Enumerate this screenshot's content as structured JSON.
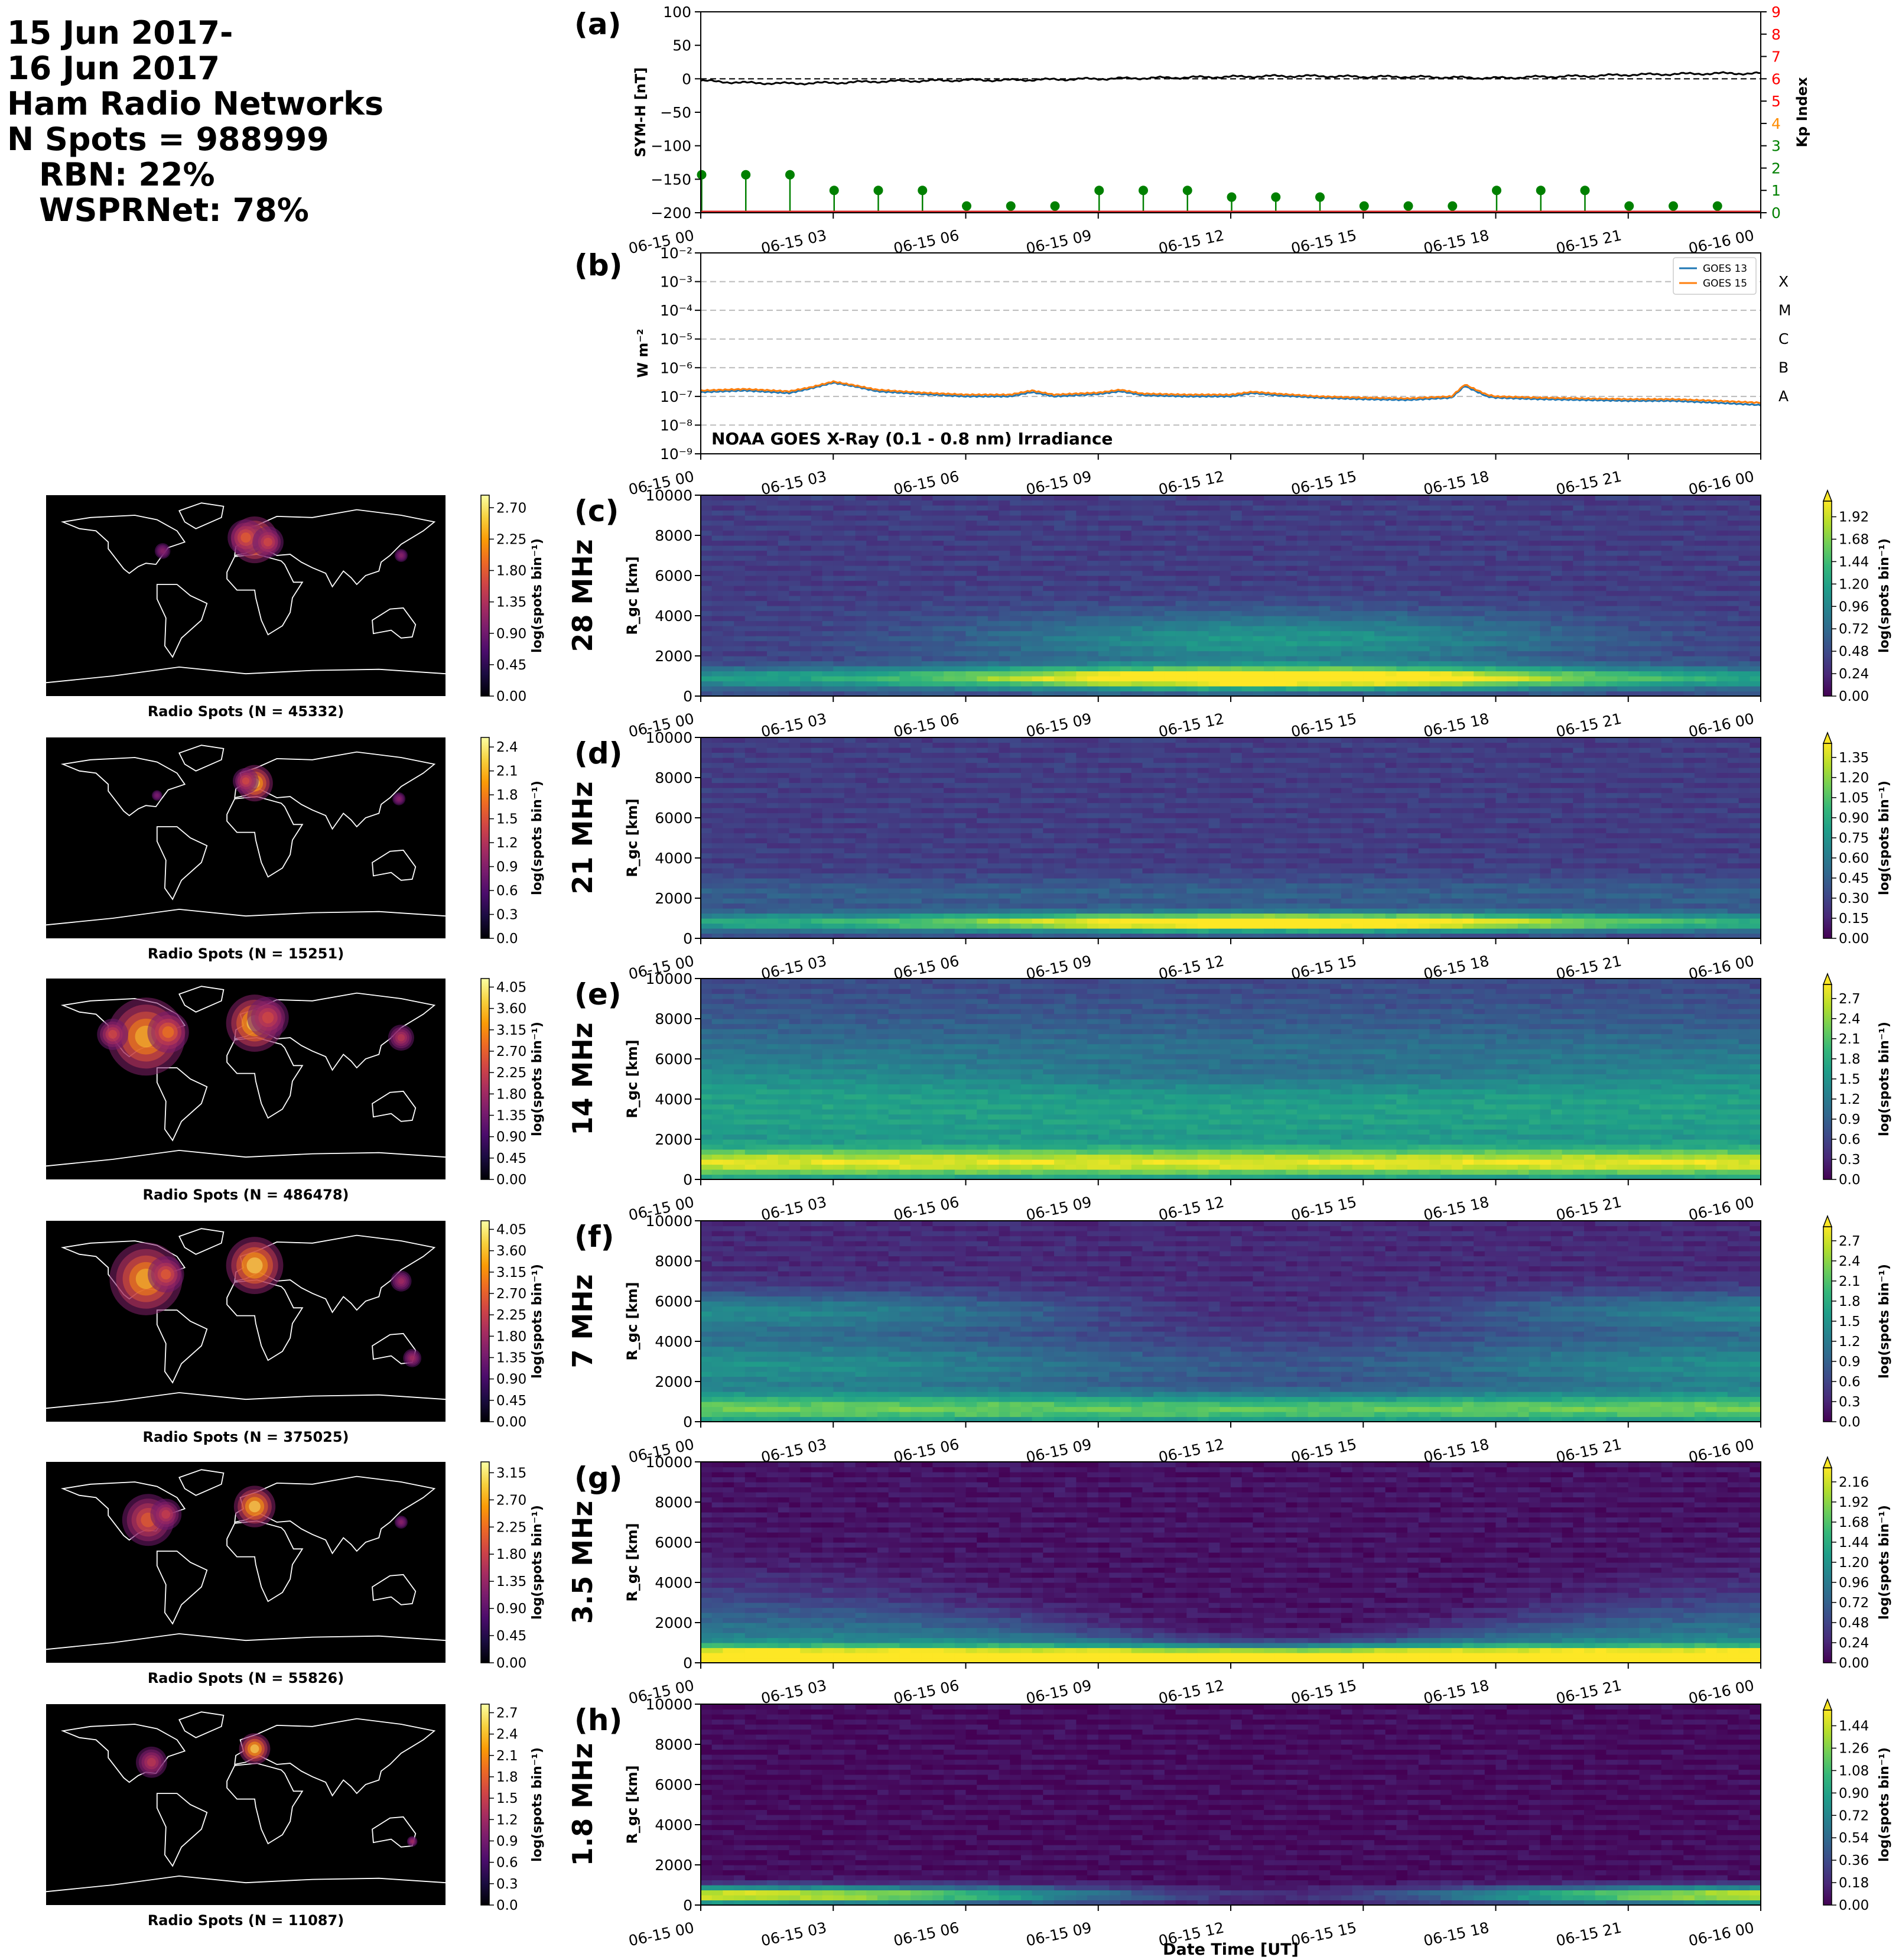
{
  "header": {
    "lines": [
      "15 Jun 2017-",
      "16 Jun 2017",
      "Ham Radio Networks",
      "N Spots = 988999"
    ],
    "sub_lines": [
      "RBN: 22%",
      "WSPRNet: 78%"
    ]
  },
  "colors": {
    "viridis": [
      "#440154",
      "#482878",
      "#3e4989",
      "#31688e",
      "#26828e",
      "#1f9e89",
      "#35b779",
      "#6ece58",
      "#b5de2b",
      "#fde725"
    ],
    "inferno": [
      "#000004",
      "#1b0c41",
      "#4a0c6b",
      "#781c6d",
      "#a52c60",
      "#cf4446",
      "#ed6925",
      "#fb9b06",
      "#f7d13d",
      "#fcffa4"
    ],
    "symh_line": "#000000",
    "kp_stem": "#008000",
    "kp_axis_colors": [
      "#008000",
      "#008000",
      "#008000",
      "#008000",
      "#ff8c00",
      "#ff0000",
      "#ff0000",
      "#ff0000",
      "#ff0000",
      "#ff0000"
    ],
    "goes13": "#1f77b4",
    "goes15": "#ff7f0e",
    "coastline": "#ffffff",
    "map_bg": "#000000"
  },
  "time_axis": {
    "ticks": [
      "06-15 00",
      "06-15 03",
      "06-15 06",
      "06-15 09",
      "06-15 12",
      "06-15 15",
      "06-15 18",
      "06-15 21",
      "06-16 00"
    ],
    "xlabel": "Date Time [UT]"
  },
  "chart_data": [
    {
      "id": "symh_kp",
      "type": "line",
      "panel_label": "(a)",
      "ylabel": "SYM-H [nT]",
      "ylim": [
        -200,
        100
      ],
      "yticks": [
        "−200",
        "−150",
        "−100",
        "−50",
        "0",
        "50",
        "100"
      ],
      "y2label": "Kp Index",
      "y2lim": [
        0,
        9
      ],
      "y2ticks": [
        "0",
        "1",
        "2",
        "3",
        "4",
        "5",
        "6",
        "7",
        "8",
        "9"
      ],
      "symh": {
        "x": [
          0,
          1,
          2,
          3,
          4,
          5,
          6,
          7,
          8,
          9,
          10,
          11,
          12,
          13,
          14,
          15,
          16,
          17,
          18,
          19,
          20,
          21,
          22,
          23,
          24
        ],
        "y": [
          -3,
          -6,
          -7,
          -6,
          -4,
          -3,
          -2,
          -2,
          -1,
          0,
          1,
          2,
          3,
          4,
          4,
          3,
          3,
          2,
          1,
          3,
          4,
          6,
          7,
          8,
          8
        ]
      },
      "kp": {
        "x": [
          0,
          1,
          2,
          3,
          4,
          5,
          6,
          7,
          8,
          9,
          10,
          11,
          12,
          13,
          14,
          15,
          16,
          17,
          18,
          19,
          20,
          21,
          22,
          23
        ],
        "y": [
          1.7,
          1.7,
          1.7,
          1.0,
          1.0,
          1.0,
          0.3,
          0.3,
          0.3,
          1.0,
          1.0,
          1.0,
          0.7,
          0.7,
          0.7,
          0.3,
          0.3,
          0.3,
          1.0,
          1.0,
          1.0,
          0.3,
          0.3,
          0.3
        ]
      }
    },
    {
      "id": "goes",
      "type": "line",
      "panel_label": "(b)",
      "ylabel": "W m⁻²",
      "yscale": "log",
      "ylim_exp": [
        -9,
        -2
      ],
      "yticks": [
        "10⁻⁹",
        "10⁻⁸",
        "10⁻⁷",
        "10⁻⁶",
        "10⁻⁵",
        "10⁻⁴",
        "10⁻³",
        "10⁻²"
      ],
      "flare_classes": [
        "A",
        "B",
        "C",
        "M",
        "X"
      ],
      "annotation": "NOAA GOES X-Ray (0.1 - 0.8 nm) Irradiance",
      "series": [
        {
          "name": "GOES 13",
          "x": [
            0,
            1,
            2,
            2.5,
            3,
            3.5,
            4,
            5,
            6,
            7,
            7.5,
            8,
            9,
            9.5,
            10,
            11,
            12,
            12.5,
            13,
            14,
            15,
            16,
            17,
            17.3,
            17.8,
            18,
            19,
            20,
            21,
            22,
            23,
            24
          ],
          "y": [
            1.4e-07,
            1.6e-07,
            1.3e-07,
            1.9e-07,
            3e-07,
            2.2e-07,
            1.5e-07,
            1.2e-07,
            1e-07,
            1e-07,
            1.4e-07,
            1e-07,
            1.2e-07,
            1.5e-07,
            1.1e-07,
            1e-07,
            1e-07,
            1.3e-07,
            1.1e-07,
            9e-08,
            8e-08,
            7.5e-08,
            9e-08,
            2.3e-07,
            1e-07,
            9e-08,
            8e-08,
            7.5e-08,
            7e-08,
            7e-08,
            6e-08,
            5e-08
          ]
        },
        {
          "name": "GOES 15",
          "x": [
            0,
            1,
            2,
            2.5,
            3,
            3.5,
            4,
            5,
            6,
            7,
            7.5,
            8,
            9,
            9.5,
            10,
            11,
            12,
            12.5,
            13,
            14,
            15,
            16,
            17,
            17.3,
            17.8,
            18,
            19,
            20,
            21,
            22,
            23,
            24
          ],
          "y": [
            1.6e-07,
            1.8e-07,
            1.5e-07,
            2.1e-07,
            3.3e-07,
            2.4e-07,
            1.7e-07,
            1.35e-07,
            1.15e-07,
            1.15e-07,
            1.6e-07,
            1.15e-07,
            1.35e-07,
            1.7e-07,
            1.25e-07,
            1.15e-07,
            1.15e-07,
            1.45e-07,
            1.25e-07,
            1e-07,
            9e-08,
            8.5e-08,
            1e-07,
            2.6e-07,
            1.15e-07,
            1e-07,
            9e-08,
            8.5e-08,
            8e-08,
            8e-08,
            7e-08,
            6e-08
          ]
        }
      ]
    },
    {
      "id": "band_28",
      "type": "heatmap",
      "panel_label": "(c)",
      "band_label": "28 MHz",
      "ylabel": "R_gc [km]",
      "ylim": [
        0,
        10000
      ],
      "yticks": [
        "0",
        "2000",
        "4000",
        "6000",
        "8000",
        "10000"
      ],
      "cbar_label": "log(spots bin⁻¹)",
      "cbar_ticks": [
        "0.00",
        "0.24",
        "0.48",
        "0.72",
        "0.96",
        "1.20",
        "1.44",
        "1.68",
        "1.92"
      ],
      "map_title": "Radio Spots (N = 45332)",
      "map_cbar_ticks": [
        "0.00",
        "0.45",
        "0.90",
        "1.35",
        "1.80",
        "2.25",
        "2.70"
      ],
      "profile": "day",
      "main_r": 1000,
      "extent": 2500
    },
    {
      "id": "band_21",
      "type": "heatmap",
      "panel_label": "(d)",
      "band_label": "21 MHz",
      "ylabel": "R_gc [km]",
      "ylim": [
        0,
        10000
      ],
      "yticks": [
        "0",
        "2000",
        "4000",
        "6000",
        "8000",
        "10000"
      ],
      "cbar_label": "log(spots bin⁻¹)",
      "cbar_ticks": [
        "0.00",
        "0.15",
        "0.30",
        "0.45",
        "0.60",
        "0.75",
        "0.90",
        "1.05",
        "1.20",
        "1.35"
      ],
      "map_title": "Radio Spots (N = 15251)",
      "map_cbar_ticks": [
        "0.0",
        "0.3",
        "0.6",
        "0.9",
        "1.2",
        "1.5",
        "1.8",
        "2.1",
        "2.4"
      ],
      "profile": "day_narrow",
      "main_r": 900,
      "extent": 1800
    },
    {
      "id": "band_14",
      "type": "heatmap",
      "panel_label": "(e)",
      "band_label": "14 MHz",
      "ylabel": "R_gc [km]",
      "ylim": [
        0,
        10000
      ],
      "yticks": [
        "0",
        "2000",
        "4000",
        "6000",
        "8000",
        "10000"
      ],
      "cbar_label": "log(spots bin⁻¹)",
      "cbar_ticks": [
        "0.0",
        "0.3",
        "0.6",
        "0.9",
        "1.2",
        "1.5",
        "1.8",
        "2.1",
        "2.4",
        "2.7"
      ],
      "map_title": "Radio Spots (N = 486478)",
      "map_cbar_ticks": [
        "0.00",
        "0.45",
        "0.90",
        "1.35",
        "1.80",
        "2.25",
        "2.70",
        "3.15",
        "3.60",
        "4.05"
      ],
      "profile": "broad",
      "main_r": 800,
      "extent": 10000
    },
    {
      "id": "band_7",
      "type": "heatmap",
      "panel_label": "(f)",
      "band_label": "7 MHz",
      "ylabel": "R_gc [km]",
      "ylim": [
        0,
        10000
      ],
      "yticks": [
        "0",
        "2000",
        "4000",
        "6000",
        "8000",
        "10000"
      ],
      "cbar_label": "log(spots bin⁻¹)",
      "cbar_ticks": [
        "0.0",
        "0.3",
        "0.6",
        "0.9",
        "1.2",
        "1.5",
        "1.8",
        "2.1",
        "2.4",
        "2.7"
      ],
      "map_title": "Radio Spots (N = 375025)",
      "map_cbar_ticks": [
        "0.00",
        "0.45",
        "0.90",
        "1.35",
        "1.80",
        "2.25",
        "2.70",
        "3.15",
        "3.60",
        "4.05"
      ],
      "profile": "night",
      "main_r": 700,
      "extent": 7000
    },
    {
      "id": "band_3_5",
      "type": "heatmap",
      "panel_label": "(g)",
      "band_label": "3.5 MHz",
      "ylabel": "R_gc [km]",
      "ylim": [
        0,
        10000
      ],
      "yticks": [
        "0",
        "2000",
        "4000",
        "6000",
        "8000",
        "10000"
      ],
      "cbar_label": "log(spots bin⁻¹)",
      "cbar_ticks": [
        "0.00",
        "0.24",
        "0.48",
        "0.72",
        "0.96",
        "1.20",
        "1.44",
        "1.68",
        "1.92",
        "2.16"
      ],
      "map_title": "Radio Spots (N = 55826)",
      "map_cbar_ticks": [
        "0.00",
        "0.45",
        "0.90",
        "1.35",
        "1.80",
        "2.25",
        "2.70",
        "3.15"
      ],
      "profile": "night_short",
      "main_r": 400,
      "extent": 4000
    },
    {
      "id": "band_1_8",
      "type": "heatmap",
      "panel_label": "(h)",
      "band_label": "1.8 MHz",
      "ylabel": "R_gc [km]",
      "ylim": [
        0,
        10000
      ],
      "yticks": [
        "0",
        "2000",
        "4000",
        "6000",
        "8000",
        "10000"
      ],
      "cbar_label": "log(spots bin⁻¹)",
      "cbar_ticks": [
        "0.00",
        "0.18",
        "0.36",
        "0.54",
        "0.72",
        "0.90",
        "1.08",
        "1.26",
        "1.44"
      ],
      "map_title": "Radio Spots (N = 11087)",
      "map_cbar_ticks": [
        "0.0",
        "0.3",
        "0.6",
        "0.9",
        "1.2",
        "1.5",
        "1.8",
        "2.1",
        "2.4",
        "2.7"
      ],
      "profile": "night_low",
      "main_r": 400,
      "extent": 1500
    }
  ]
}
